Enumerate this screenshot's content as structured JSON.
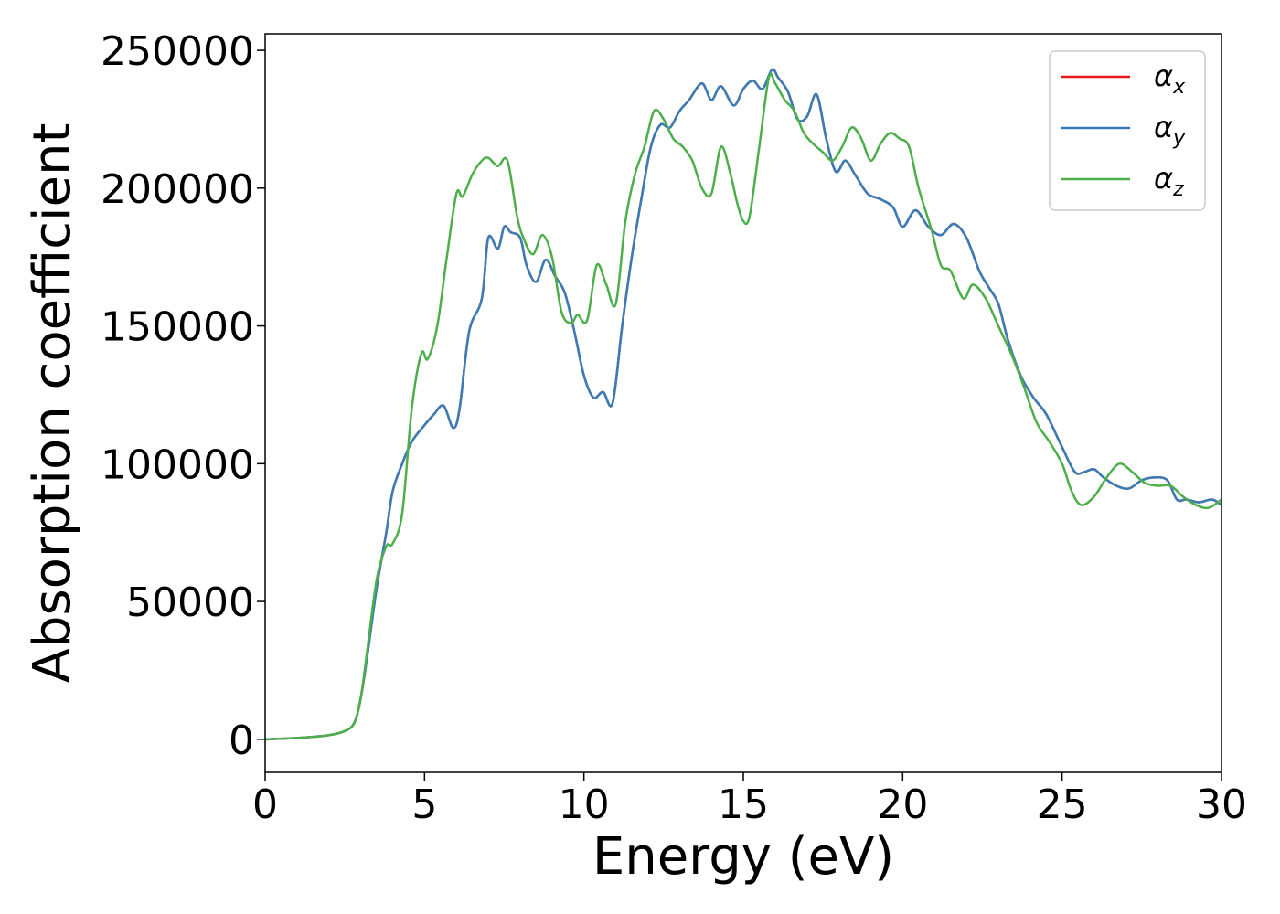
{
  "chart_data": {
    "type": "line",
    "xlabel": "Energy (eV)",
    "ylabel": "Absorption coefficient",
    "xlim": [
      0,
      30
    ],
    "ylim": [
      -12000,
      256000
    ],
    "xticks": [
      0,
      5,
      10,
      15,
      20,
      25,
      30
    ],
    "yticks": [
      0,
      50000,
      100000,
      150000,
      200000,
      250000
    ],
    "grid": false,
    "legend_position": "top-right",
    "series": [
      {
        "name": "α",
        "name_sub": "x",
        "color": "#e41a1c",
        "x": [
          0,
          1,
          2,
          2.5,
          2.8,
          3,
          3.2,
          3.5,
          3.8,
          4,
          4.3,
          4.6,
          5,
          5.3,
          5.6,
          5.9,
          6.1,
          6.4,
          6.8,
          7,
          7.3,
          7.5,
          7.7,
          8,
          8.2,
          8.5,
          8.8,
          9.1,
          9.4,
          9.7,
          10,
          10.3,
          10.6,
          10.9,
          11.2,
          11.5,
          11.8,
          12.1,
          12.4,
          12.7,
          13,
          13.3,
          13.7,
          14,
          14.3,
          14.7,
          15,
          15.3,
          15.6,
          15.9,
          16.1,
          16.4,
          16.7,
          17,
          17.3,
          17.6,
          17.9,
          18.2,
          18.5,
          18.9,
          19.3,
          19.7,
          20,
          20.4,
          20.8,
          21.2,
          21.6,
          22,
          22.4,
          22.7,
          23,
          23.3,
          23.7,
          24.1,
          24.5,
          25,
          25.4,
          25.7,
          26,
          26.3,
          26.7,
          27.1,
          27.5,
          27.9,
          28.3,
          28.6,
          28.9,
          29.3,
          29.7,
          30
        ],
        "y": [
          0,
          500,
          1500,
          3000,
          6000,
          15000,
          30000,
          55000,
          75000,
          90000,
          100000,
          108000,
          114000,
          118000,
          121000,
          113000,
          120000,
          148000,
          160000,
          182000,
          178000,
          186000,
          184000,
          182000,
          172000,
          166000,
          174000,
          168000,
          162000,
          148000,
          132000,
          124000,
          126000,
          122000,
          150000,
          175000,
          196000,
          215000,
          223000,
          222000,
          228000,
          232000,
          238000,
          232000,
          237000,
          230000,
          236000,
          239000,
          236000,
          243000,
          240000,
          235000,
          225000,
          226000,
          234000,
          218000,
          206000,
          210000,
          205000,
          198000,
          196000,
          193000,
          186000,
          192000,
          186000,
          183000,
          187000,
          182000,
          170000,
          164000,
          158000,
          145000,
          132000,
          124000,
          118000,
          106000,
          97000,
          97000,
          98000,
          95000,
          92000,
          91000,
          94000,
          95000,
          94000,
          87000,
          87000,
          86000,
          87000,
          85000
        ]
      },
      {
        "name": "α",
        "name_sub": "y",
        "color": "#377eb8",
        "x": [
          0,
          1,
          2,
          2.5,
          2.8,
          3,
          3.2,
          3.5,
          3.8,
          4,
          4.3,
          4.6,
          5,
          5.3,
          5.6,
          5.9,
          6.1,
          6.4,
          6.8,
          7,
          7.3,
          7.5,
          7.7,
          8,
          8.2,
          8.5,
          8.8,
          9.1,
          9.4,
          9.7,
          10,
          10.3,
          10.6,
          10.9,
          11.2,
          11.5,
          11.8,
          12.1,
          12.4,
          12.7,
          13,
          13.3,
          13.7,
          14,
          14.3,
          14.7,
          15,
          15.3,
          15.6,
          15.9,
          16.1,
          16.4,
          16.7,
          17,
          17.3,
          17.6,
          17.9,
          18.2,
          18.5,
          18.9,
          19.3,
          19.7,
          20,
          20.4,
          20.8,
          21.2,
          21.6,
          22,
          22.4,
          22.7,
          23,
          23.3,
          23.7,
          24.1,
          24.5,
          25,
          25.4,
          25.7,
          26,
          26.3,
          26.7,
          27.1,
          27.5,
          27.9,
          28.3,
          28.6,
          28.9,
          29.3,
          29.7,
          30
        ],
        "y": [
          0,
          500,
          1500,
          3000,
          6000,
          15000,
          30000,
          55000,
          75000,
          90000,
          100000,
          108000,
          114000,
          118000,
          121000,
          113000,
          120000,
          148000,
          160000,
          182000,
          178000,
          186000,
          184000,
          182000,
          172000,
          166000,
          174000,
          168000,
          162000,
          148000,
          132000,
          124000,
          126000,
          122000,
          150000,
          175000,
          196000,
          215000,
          223000,
          222000,
          228000,
          232000,
          238000,
          232000,
          237000,
          230000,
          236000,
          239000,
          236000,
          243000,
          240000,
          235000,
          225000,
          226000,
          234000,
          218000,
          206000,
          210000,
          205000,
          198000,
          196000,
          193000,
          186000,
          192000,
          186000,
          183000,
          187000,
          182000,
          170000,
          164000,
          158000,
          145000,
          132000,
          124000,
          118000,
          106000,
          97000,
          97000,
          98000,
          95000,
          92000,
          91000,
          94000,
          95000,
          94000,
          87000,
          87000,
          86000,
          87000,
          85000
        ]
      },
      {
        "name": "α",
        "name_sub": "z",
        "color": "#4daf4a",
        "x": [
          0,
          1,
          2,
          2.5,
          2.8,
          3,
          3.2,
          3.5,
          3.8,
          4,
          4.3,
          4.6,
          4.9,
          5.1,
          5.4,
          5.7,
          6,
          6.2,
          6.5,
          6.8,
          7,
          7.3,
          7.6,
          7.9,
          8.1,
          8.4,
          8.7,
          9,
          9.3,
          9.6,
          9.8,
          10.1,
          10.4,
          10.7,
          11,
          11.3,
          11.6,
          11.9,
          12.2,
          12.5,
          12.8,
          13.1,
          13.4,
          13.7,
          14,
          14.3,
          14.6,
          14.8,
          15,
          15.2,
          15.5,
          15.8,
          16,
          16.3,
          16.6,
          16.9,
          17.2,
          17.5,
          17.8,
          18.1,
          18.4,
          18.7,
          19,
          19.3,
          19.6,
          19.9,
          20.2,
          20.5,
          20.9,
          21.2,
          21.5,
          21.9,
          22.2,
          22.6,
          23,
          23.4,
          23.8,
          24.2,
          24.6,
          25,
          25.3,
          25.6,
          26,
          26.4,
          26.8,
          27.2,
          27.6,
          28,
          28.4,
          28.8,
          29.2,
          29.6,
          30
        ],
        "y": [
          0,
          500,
          1500,
          3000,
          6000,
          15000,
          32000,
          58000,
          70000,
          71000,
          82000,
          120000,
          140000,
          138000,
          150000,
          175000,
          198000,
          197000,
          205000,
          210000,
          211000,
          208000,
          210000,
          190000,
          182000,
          176000,
          183000,
          175000,
          155000,
          151000,
          154000,
          152000,
          172000,
          165000,
          158000,
          188000,
          205000,
          215000,
          228000,
          225000,
          218000,
          215000,
          210000,
          200000,
          198000,
          215000,
          205000,
          195000,
          188000,
          190000,
          215000,
          240000,
          238000,
          232000,
          228000,
          220000,
          216000,
          213000,
          210000,
          215000,
          222000,
          218000,
          210000,
          216000,
          220000,
          218000,
          215000,
          200000,
          185000,
          172000,
          170000,
          160000,
          165000,
          160000,
          150000,
          140000,
          128000,
          115000,
          108000,
          100000,
          90000,
          85000,
          88000,
          95000,
          100000,
          97000,
          93000,
          92000,
          92000,
          88000,
          85000,
          84000,
          87000
        ]
      }
    ]
  }
}
